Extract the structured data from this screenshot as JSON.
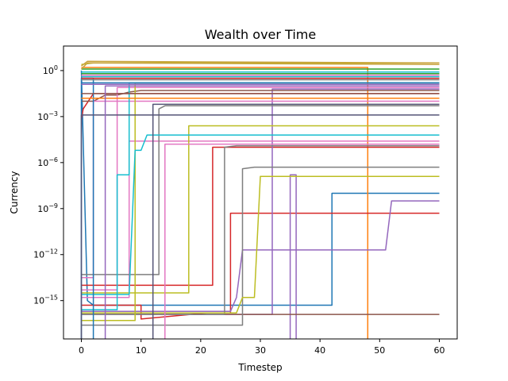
{
  "chart_data": {
    "type": "line",
    "title": "Wealth over Time",
    "xlabel": "Timestep",
    "ylabel": "Currency",
    "xlim": [
      -3,
      63
    ],
    "ylim_log10": [
      -17.5,
      1.6
    ],
    "y_scale": "log",
    "grid": false,
    "legend": "none",
    "x_ticks": [
      {
        "value": 0,
        "label": "0"
      },
      {
        "value": 10,
        "label": "10"
      },
      {
        "value": 20,
        "label": "20"
      },
      {
        "value": 30,
        "label": "30"
      },
      {
        "value": 40,
        "label": "40"
      },
      {
        "value": 50,
        "label": "50"
      },
      {
        "value": 60,
        "label": "60"
      }
    ],
    "y_ticks": [
      {
        "exp": 0,
        "base": "10",
        "sup": "0"
      },
      {
        "exp": -3,
        "base": "10",
        "sup": "−3"
      },
      {
        "exp": -6,
        "base": "10",
        "sup": "−6"
      },
      {
        "exp": -9,
        "base": "10",
        "sup": "−9"
      },
      {
        "exp": -12,
        "base": "10",
        "sup": "−12"
      },
      {
        "exp": -15,
        "base": "10",
        "sup": "−15"
      }
    ],
    "series": [
      {
        "color": "#1f77b4",
        "points": [
          [
            0,
            0
          ],
          [
            1,
            -15
          ],
          [
            2,
            -15.3
          ],
          [
            4,
            -15.3
          ],
          [
            42,
            -15.3
          ],
          [
            42,
            -8
          ],
          [
            60,
            -8
          ]
        ]
      },
      {
        "color": "#ff7f0e",
        "points": [
          [
            0,
            0.2
          ],
          [
            48,
            0.2
          ],
          [
            48,
            -18
          ],
          [
            48,
            -18
          ]
        ]
      },
      {
        "color": "#2ca02c",
        "points": [
          [
            0,
            -0.2
          ],
          [
            60,
            -0.2
          ]
        ]
      },
      {
        "color": "#d62728",
        "points": [
          [
            0,
            -3.2
          ],
          [
            0.3,
            -2.5
          ],
          [
            2,
            -1.5
          ],
          [
            60,
            -1.5
          ]
        ]
      },
      {
        "color": "#d62728",
        "points": [
          [
            0,
            -14
          ],
          [
            22,
            -14
          ],
          [
            22,
            -5
          ],
          [
            60,
            -5
          ]
        ]
      },
      {
        "color": "#d62728",
        "points": [
          [
            0,
            -15.8
          ],
          [
            25,
            -15.8
          ],
          [
            25,
            -9.3
          ],
          [
            60,
            -9.3
          ]
        ]
      },
      {
        "color": "#d62728",
        "points": [
          [
            0,
            -15.3
          ],
          [
            10,
            -15.3
          ],
          [
            10,
            -16.2
          ],
          [
            21,
            -15.8
          ],
          [
            22,
            -15.8
          ]
        ]
      },
      {
        "color": "#9467bd",
        "points": [
          [
            0,
            -15.7
          ],
          [
            25,
            -15.7
          ],
          [
            26,
            -14.8
          ],
          [
            27,
            -11.7
          ],
          [
            51,
            -11.7
          ],
          [
            52,
            -8.5
          ],
          [
            60,
            -8.5
          ]
        ]
      },
      {
        "color": "#9467bd",
        "points": [
          [
            0,
            -15.9
          ],
          [
            32,
            -15.9
          ],
          [
            32,
            -1.2
          ],
          [
            60,
            -1.2
          ]
        ]
      },
      {
        "color": "#9467bd",
        "points": [
          [
            35,
            -18
          ],
          [
            35,
            -6.8
          ],
          [
            36,
            -6.8
          ],
          [
            36,
            -18
          ]
        ]
      },
      {
        "color": "#8c564b",
        "points": [
          [
            0,
            -15.9
          ],
          [
            60,
            -15.9
          ]
        ]
      },
      {
        "color": "#8c564b",
        "points": [
          [
            0,
            -2
          ],
          [
            2,
            -2
          ],
          [
            4,
            -1.6
          ],
          [
            6,
            -1.6
          ],
          [
            8,
            -1.4
          ],
          [
            10,
            -1.3
          ],
          [
            60,
            -1.3
          ]
        ]
      },
      {
        "color": "#e377c2",
        "points": [
          [
            0,
            -13.5
          ],
          [
            2,
            -13.5
          ],
          [
            2,
            -2
          ],
          [
            60,
            -2
          ]
        ]
      },
      {
        "color": "#e377c2",
        "points": [
          [
            0,
            -14.3
          ],
          [
            6,
            -14.3
          ],
          [
            6,
            -1.1
          ],
          [
            60,
            -1.1
          ]
        ]
      },
      {
        "color": "#e377c2",
        "points": [
          [
            0,
            -14.8
          ],
          [
            8,
            -14.8
          ],
          [
            8,
            -4.6
          ],
          [
            60,
            -4.6
          ]
        ]
      },
      {
        "color": "#7f7f7f",
        "points": [
          [
            0,
            -16.6
          ],
          [
            27,
            -16.6
          ],
          [
            27,
            -6.4
          ],
          [
            29,
            -6.3
          ],
          [
            60,
            -6.3
          ]
        ]
      },
      {
        "color": "#7f7f7f",
        "points": [
          [
            0,
            -15.9
          ],
          [
            24,
            -15.9
          ],
          [
            24,
            -5
          ],
          [
            26,
            -4.9
          ],
          [
            60,
            -4.9
          ]
        ]
      },
      {
        "color": "#7f7f7f",
        "points": [
          [
            0,
            -13.3
          ],
          [
            13,
            -13.3
          ],
          [
            13,
            -2.5
          ],
          [
            14,
            -2.3
          ],
          [
            60,
            -2.3
          ]
        ]
      },
      {
        "color": "#bcbd22",
        "points": [
          [
            0,
            -14.5
          ],
          [
            18,
            -14.5
          ],
          [
            18,
            -3.6
          ],
          [
            60,
            -3.6
          ]
        ]
      },
      {
        "color": "#bcbd22",
        "points": [
          [
            0,
            -15.8
          ],
          [
            26,
            -15.8
          ],
          [
            27,
            -14.8
          ],
          [
            29,
            -14.8
          ],
          [
            30,
            -6.9
          ],
          [
            60,
            -6.9
          ]
        ]
      },
      {
        "color": "#bcbd22",
        "points": [
          [
            0,
            -16.3
          ],
          [
            9,
            -16.3
          ],
          [
            9,
            -0.8
          ],
          [
            60,
            -0.8
          ]
        ]
      },
      {
        "color": "#bcbd22",
        "points": [
          [
            0,
            0.4
          ],
          [
            2,
            0.5
          ],
          [
            60,
            0.5
          ]
        ]
      },
      {
        "color": "#17becf",
        "points": [
          [
            0,
            -14.6
          ],
          [
            8,
            -14.6
          ],
          [
            9,
            -5.2
          ],
          [
            10,
            -5.2
          ],
          [
            11,
            -4.2
          ],
          [
            60,
            -4.2
          ]
        ]
      },
      {
        "color": "#17becf",
        "points": [
          [
            0,
            -15.6
          ],
          [
            6,
            -15.6
          ],
          [
            6,
            -6.8
          ],
          [
            8,
            -6.8
          ],
          [
            8,
            -0.8
          ],
          [
            60,
            -0.8
          ]
        ]
      },
      {
        "color": "#17becf",
        "points": [
          [
            0,
            -0.4
          ],
          [
            60,
            -0.4
          ]
        ]
      },
      {
        "color": "#1f77b4",
        "points": [
          [
            0,
            -0.8
          ],
          [
            60,
            -0.8
          ]
        ]
      },
      {
        "color": "#1f77b4",
        "points": [
          [
            0,
            -18
          ],
          [
            0,
            -0.5
          ],
          [
            2,
            -0.5
          ],
          [
            2,
            -18
          ]
        ]
      },
      {
        "color": "#ff7f0e",
        "points": [
          [
            0,
            -1.8
          ],
          [
            60,
            -1.8
          ]
        ]
      },
      {
        "color": "#2ca02c",
        "points": [
          [
            0,
            0.1
          ],
          [
            60,
            0.1
          ]
        ]
      },
      {
        "color": "#9467bd",
        "points": [
          [
            0,
            -0.9
          ],
          [
            60,
            -0.9
          ]
        ]
      },
      {
        "color": "#8c564b",
        "points": [
          [
            0,
            -1.5
          ],
          [
            60,
            -1.5
          ]
        ]
      },
      {
        "color": "#e377c2",
        "points": [
          [
            0,
            -0.3
          ],
          [
            60,
            -0.3
          ]
        ]
      },
      {
        "color": "#7f7f7f",
        "points": [
          [
            0,
            -0.6
          ],
          [
            60,
            -0.6
          ]
        ]
      },
      {
        "color": "#17becf",
        "points": [
          [
            0,
            -0.1
          ],
          [
            60,
            -0.1
          ]
        ]
      },
      {
        "color": "#d62728",
        "points": [
          [
            0,
            -0.5
          ],
          [
            60,
            -0.5
          ]
        ]
      },
      {
        "color": "#555577",
        "points": [
          [
            0,
            -18
          ],
          [
            0,
            -2.9
          ],
          [
            60,
            -2.9
          ]
        ]
      },
      {
        "color": "#555577",
        "points": [
          [
            0,
            -18
          ],
          [
            12,
            -18
          ],
          [
            12,
            -2.2
          ],
          [
            60,
            -2.2
          ]
        ]
      },
      {
        "color": "#9467bd",
        "points": [
          [
            4,
            -18
          ],
          [
            4,
            -1
          ],
          [
            60,
            -1
          ]
        ]
      },
      {
        "color": "#e377c2",
        "points": [
          [
            14,
            -18
          ],
          [
            14,
            -4.8
          ],
          [
            60,
            -4.8
          ]
        ]
      },
      {
        "color": "#c8a23b",
        "points": [
          [
            0,
            0.3
          ],
          [
            1,
            0.6
          ],
          [
            60,
            0.5
          ]
        ]
      },
      {
        "color": "#c8a23b",
        "points": [
          [
            0,
            0.1
          ],
          [
            1,
            0.5
          ],
          [
            60,
            0.4
          ]
        ]
      }
    ]
  }
}
